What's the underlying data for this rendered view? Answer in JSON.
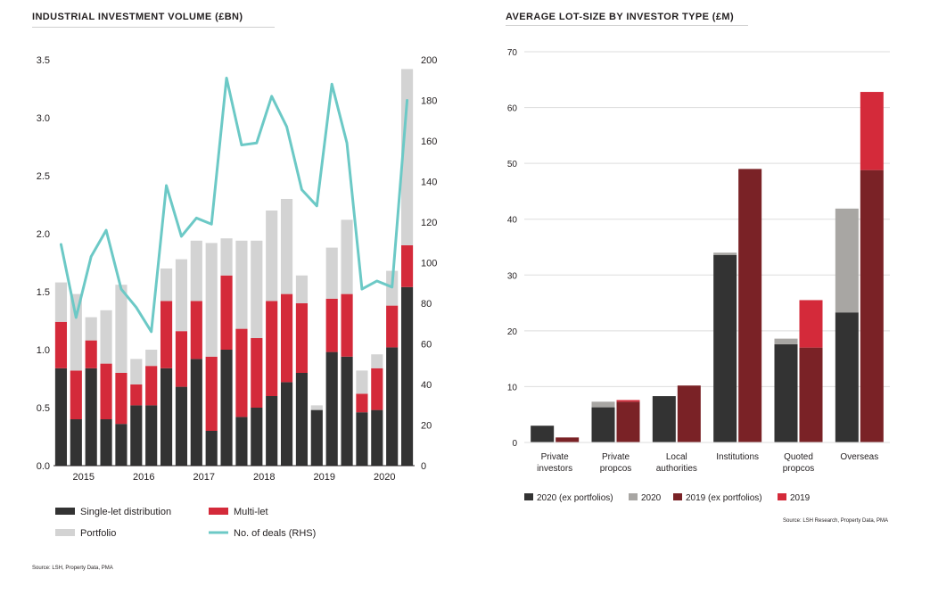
{
  "chart_data": [
    {
      "type": "bar",
      "title": "INDUSTRIAL INVESTMENT VOLUME (£BN)",
      "stacked": true,
      "ylim": [
        0,
        3.5
      ],
      "y_ticks": [
        "0.0",
        "0.5",
        "1.0",
        "1.5",
        "2.0",
        "2.5",
        "3.0",
        "3.5"
      ],
      "y2lim": [
        0,
        200
      ],
      "y2_ticks": [
        "0",
        "20",
        "40",
        "60",
        "80",
        "100",
        "120",
        "140",
        "160",
        "180",
        "200"
      ],
      "x_year_labels": [
        {
          "label": "2015",
          "start": 0,
          "end": 3
        },
        {
          "label": "2016",
          "start": 4,
          "end": 7
        },
        {
          "label": "2017",
          "start": 8,
          "end": 11
        },
        {
          "label": "2018",
          "start": 12,
          "end": 15
        },
        {
          "label": "2019",
          "start": 16,
          "end": 19
        },
        {
          "label": "2020",
          "start": 20,
          "end": 23
        }
      ],
      "series": [
        {
          "name": "Single-let distribution",
          "color": "#333333",
          "values": [
            0.84,
            0.4,
            0.84,
            0.4,
            0.36,
            0.52,
            0.52,
            0.84,
            0.68,
            0.92,
            0.3,
            1.0,
            0.42,
            0.5,
            0.6,
            0.72,
            0.8,
            0.48,
            0.98,
            0.94,
            0.46,
            0.48,
            1.02,
            1.54
          ]
        },
        {
          "name": "Multi-let",
          "color": "#d42a3a",
          "values": [
            0.4,
            0.42,
            0.24,
            0.48,
            0.44,
            0.18,
            0.34,
            0.58,
            0.48,
            0.5,
            0.64,
            0.64,
            0.76,
            0.6,
            0.82,
            0.76,
            0.6,
            0.0,
            0.46,
            0.54,
            0.16,
            0.36,
            0.36,
            0.36
          ]
        },
        {
          "name": "Portfolio",
          "color": "#d3d3d3",
          "values": [
            0.34,
            0.66,
            0.2,
            0.46,
            0.76,
            0.22,
            0.14,
            0.28,
            0.62,
            0.52,
            0.98,
            0.32,
            0.76,
            0.84,
            0.78,
            0.82,
            0.24,
            0.04,
            0.44,
            0.64,
            0.2,
            0.12,
            0.3,
            1.52
          ]
        }
      ],
      "line_series": {
        "name": "No. of deals (RHS)",
        "color": "#6cc9c6",
        "values": [
          109,
          73,
          103,
          116,
          87,
          78,
          66,
          138,
          113,
          122,
          119,
          191,
          158,
          159,
          182,
          167,
          136,
          128,
          188,
          159,
          87,
          91,
          88,
          180
        ]
      },
      "legend": [
        "Single-let distribution",
        "Multi-let",
        "Portfolio",
        "No. of deals (RHS)"
      ],
      "source": "Source: LSH, Property Data, PMA"
    },
    {
      "type": "bar",
      "title": "AVERAGE LOT-SIZE BY INVESTOR TYPE (£M)",
      "ylim": [
        0,
        70
      ],
      "y_ticks": [
        "0",
        "10",
        "20",
        "30",
        "40",
        "50",
        "60",
        "70"
      ],
      "categories": [
        [
          "Private",
          "investors"
        ],
        [
          "Private",
          "propcos"
        ],
        [
          "Local",
          "authorities"
        ],
        [
          "Institutions"
        ],
        [
          "Quoted",
          "propcos"
        ],
        [
          "Overseas"
        ]
      ],
      "groups": [
        {
          "name": "2020",
          "segments": [
            {
              "name": "2020 (ex portfolios)",
              "color": "#333333",
              "values": [
                3.0,
                6.3,
                8.3,
                33.6,
                17.6,
                23.3
              ]
            },
            {
              "name": "2020",
              "color": "#a8a6a3",
              "values": [
                0,
                1.0,
                0,
                0.4,
                1.0,
                18.6
              ]
            }
          ]
        },
        {
          "name": "2019",
          "segments": [
            {
              "name": "2019 (ex portfolios)",
              "color": "#7a2226",
              "values": [
                0.9,
                7.3,
                10.2,
                49.0,
                17.0,
                48.8
              ]
            },
            {
              "name": "2019",
              "color": "#d42a3a",
              "values": [
                0,
                0.3,
                0,
                0,
                8.5,
                14.0
              ]
            }
          ]
        }
      ],
      "legend": [
        "2020 (ex portfolios)",
        "2020",
        "2019 (ex portfolios)",
        "2019"
      ],
      "source": "Source: LSH Research, Property Data, PMA"
    }
  ]
}
